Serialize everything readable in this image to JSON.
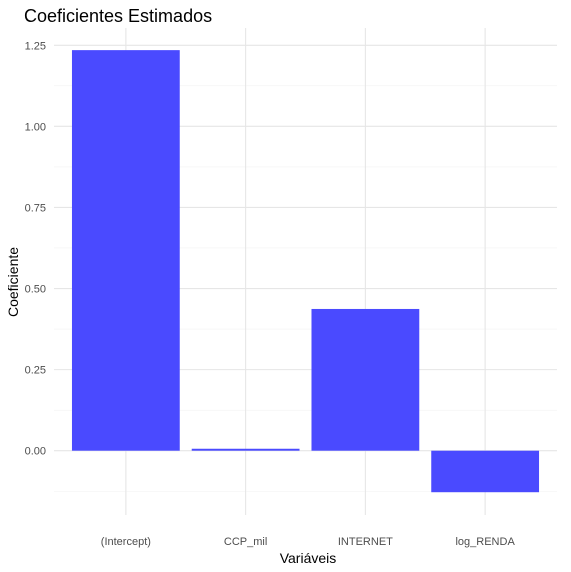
{
  "chart_data": {
    "type": "bar",
    "title": "Coeficientes Estimados",
    "xlabel": "Variáveis",
    "ylabel": "Coeficiente",
    "categories": [
      "(Intercept)",
      "CCP_mil",
      "INTERNET",
      "log_RENDA"
    ],
    "values": [
      1.235,
      0.006,
      0.437,
      -0.128
    ],
    "ylim": [
      -0.13,
      1.235
    ],
    "yticks": [
      0.0,
      0.25,
      0.5,
      0.75,
      1.0,
      1.25
    ],
    "ytick_labels": [
      "0.00",
      "0.25",
      "0.50",
      "0.75",
      "1.00",
      "1.25"
    ],
    "bar_color": "#4a4aff",
    "grid": true,
    "legend": "none"
  }
}
